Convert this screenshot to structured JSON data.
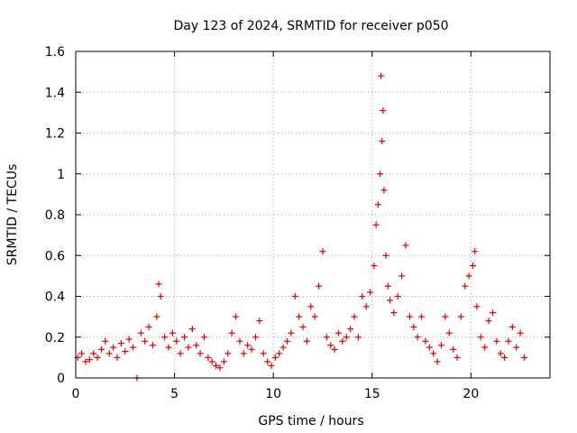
{
  "chart_data": {
    "type": "scatter",
    "title": "Day 123 of 2024, SRMTID for receiver p050",
    "xlabel": "GPS time / hours",
    "ylabel": "SRMTID / TECUs",
    "xlim": [
      0,
      24
    ],
    "ylim": [
      0,
      1.6
    ],
    "xticks": [
      0,
      5,
      10,
      15,
      20
    ],
    "yticks": [
      0,
      0.2,
      0.4,
      0.6,
      0.8,
      1.0,
      1.2,
      1.4,
      1.6
    ],
    "xtick_labels": [
      "0",
      "5",
      "10",
      "15",
      "20"
    ],
    "ytick_labels": [
      "0",
      "0.2",
      "0.4",
      "0.6",
      "0.8",
      "1",
      "1.2",
      "1.4",
      "1.6"
    ],
    "grid": true,
    "marker": "+",
    "color": "#e00000",
    "series": [
      {
        "name": "SRMTID",
        "points": [
          [
            0.1,
            0.1
          ],
          [
            0.3,
            0.12
          ],
          [
            0.5,
            0.08
          ],
          [
            0.7,
            0.09
          ],
          [
            0.9,
            0.12
          ],
          [
            1.1,
            0.1
          ],
          [
            1.3,
            0.14
          ],
          [
            1.5,
            0.18
          ],
          [
            1.7,
            0.12
          ],
          [
            1.9,
            0.15
          ],
          [
            2.1,
            0.1
          ],
          [
            2.3,
            0.17
          ],
          [
            2.5,
            0.13
          ],
          [
            2.7,
            0.19
          ],
          [
            2.9,
            0.15
          ],
          [
            3.1,
            0.0
          ],
          [
            3.3,
            0.22
          ],
          [
            3.5,
            0.18
          ],
          [
            3.7,
            0.25
          ],
          [
            3.9,
            0.16
          ],
          [
            4.1,
            0.3
          ],
          [
            4.2,
            0.46
          ],
          [
            4.3,
            0.4
          ],
          [
            4.5,
            0.2
          ],
          [
            4.7,
            0.15
          ],
          [
            4.9,
            0.22
          ],
          [
            5.1,
            0.18
          ],
          [
            5.3,
            0.12
          ],
          [
            5.5,
            0.2
          ],
          [
            5.7,
            0.15
          ],
          [
            5.9,
            0.24
          ],
          [
            6.1,
            0.16
          ],
          [
            6.3,
            0.12
          ],
          [
            6.5,
            0.2
          ],
          [
            6.7,
            0.1
          ],
          [
            6.9,
            0.08
          ],
          [
            7.1,
            0.06
          ],
          [
            7.3,
            0.05
          ],
          [
            7.5,
            0.08
          ],
          [
            7.7,
            0.12
          ],
          [
            7.9,
            0.22
          ],
          [
            8.1,
            0.3
          ],
          [
            8.3,
            0.18
          ],
          [
            8.5,
            0.12
          ],
          [
            8.7,
            0.16
          ],
          [
            8.9,
            0.14
          ],
          [
            9.1,
            0.2
          ],
          [
            9.3,
            0.28
          ],
          [
            9.5,
            0.12
          ],
          [
            9.7,
            0.08
          ],
          [
            9.9,
            0.06
          ],
          [
            10.1,
            0.1
          ],
          [
            10.3,
            0.12
          ],
          [
            10.5,
            0.15
          ],
          [
            10.7,
            0.18
          ],
          [
            10.9,
            0.22
          ],
          [
            11.1,
            0.4
          ],
          [
            11.3,
            0.3
          ],
          [
            11.5,
            0.25
          ],
          [
            11.7,
            0.18
          ],
          [
            11.9,
            0.35
          ],
          [
            12.1,
            0.3
          ],
          [
            12.3,
            0.45
          ],
          [
            12.5,
            0.62
          ],
          [
            12.7,
            0.2
          ],
          [
            12.9,
            0.16
          ],
          [
            13.1,
            0.14
          ],
          [
            13.3,
            0.22
          ],
          [
            13.5,
            0.18
          ],
          [
            13.7,
            0.2
          ],
          [
            13.9,
            0.24
          ],
          [
            14.1,
            0.3
          ],
          [
            14.3,
            0.2
          ],
          [
            14.5,
            0.4
          ],
          [
            14.7,
            0.35
          ],
          [
            14.9,
            0.42
          ],
          [
            15.1,
            0.55
          ],
          [
            15.2,
            0.75
          ],
          [
            15.3,
            0.85
          ],
          [
            15.4,
            1.0
          ],
          [
            15.45,
            1.48
          ],
          [
            15.5,
            1.16
          ],
          [
            15.55,
            1.31
          ],
          [
            15.6,
            0.92
          ],
          [
            15.7,
            0.6
          ],
          [
            15.8,
            0.45
          ],
          [
            15.9,
            0.38
          ],
          [
            16.1,
            0.32
          ],
          [
            16.3,
            0.4
          ],
          [
            16.5,
            0.5
          ],
          [
            16.7,
            0.65
          ],
          [
            16.9,
            0.3
          ],
          [
            17.1,
            0.25
          ],
          [
            17.3,
            0.2
          ],
          [
            17.5,
            0.3
          ],
          [
            17.7,
            0.18
          ],
          [
            17.9,
            0.15
          ],
          [
            18.1,
            0.12
          ],
          [
            18.3,
            0.08
          ],
          [
            18.5,
            0.16
          ],
          [
            18.7,
            0.3
          ],
          [
            18.9,
            0.22
          ],
          [
            19.1,
            0.14
          ],
          [
            19.3,
            0.1
          ],
          [
            19.5,
            0.3
          ],
          [
            19.7,
            0.45
          ],
          [
            19.9,
            0.5
          ],
          [
            20.1,
            0.55
          ],
          [
            20.2,
            0.62
          ],
          [
            20.3,
            0.35
          ],
          [
            20.5,
            0.2
          ],
          [
            20.7,
            0.15
          ],
          [
            20.9,
            0.28
          ],
          [
            21.1,
            0.32
          ],
          [
            21.3,
            0.18
          ],
          [
            21.5,
            0.12
          ],
          [
            21.7,
            0.1
          ],
          [
            21.9,
            0.18
          ],
          [
            22.1,
            0.25
          ],
          [
            22.3,
            0.15
          ],
          [
            22.5,
            0.22
          ],
          [
            22.7,
            0.1
          ]
        ]
      }
    ]
  }
}
